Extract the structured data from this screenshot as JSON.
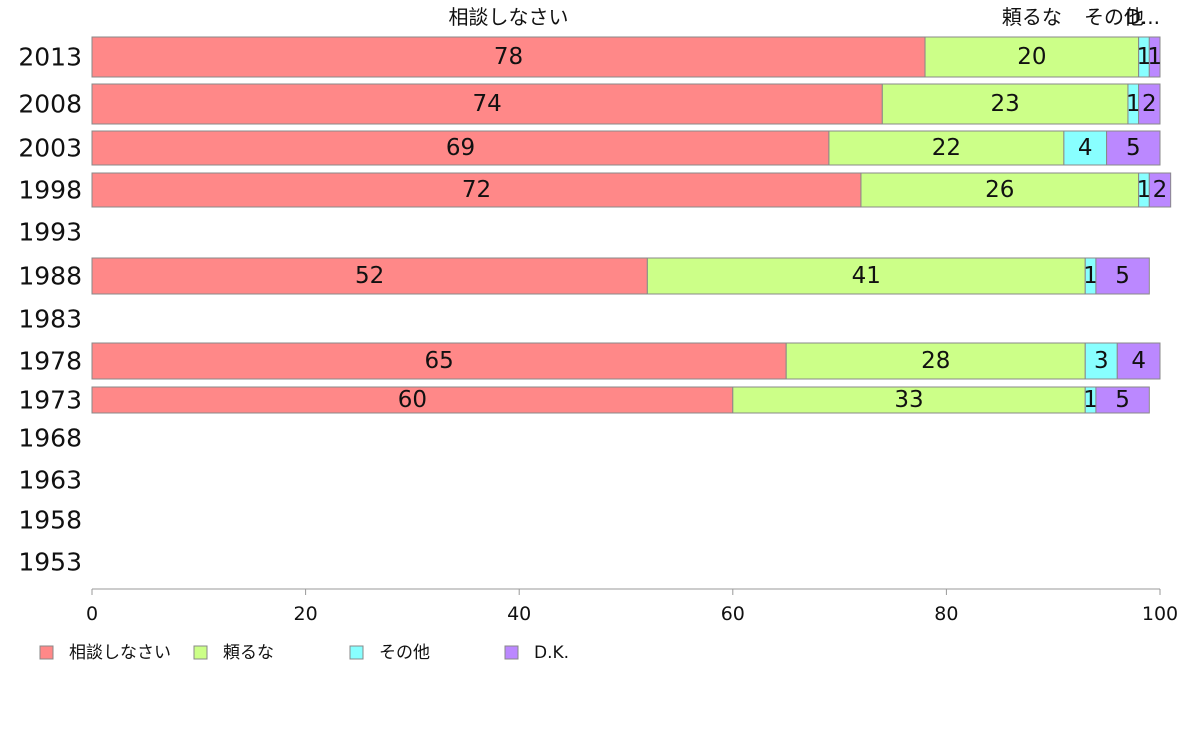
{
  "chart_data": {
    "type": "bar",
    "orientation": "horizontal",
    "stacked": true,
    "categories": [
      "2013",
      "2008",
      "2003",
      "1998",
      "1993",
      "1988",
      "1983",
      "1978",
      "1973",
      "1968",
      "1963",
      "1958",
      "1953"
    ],
    "series": [
      {
        "name": "相談しなさい",
        "color": "#ff8888",
        "values": [
          78,
          74,
          69,
          72,
          null,
          52,
          null,
          65,
          60,
          null,
          null,
          null,
          null
        ]
      },
      {
        "name": "頼るな",
        "color": "#ccff88",
        "values": [
          20,
          23,
          22,
          26,
          null,
          41,
          null,
          28,
          33,
          null,
          null,
          null,
          null
        ]
      },
      {
        "name": "その他",
        "color": "#88ffff",
        "values": [
          1,
          1,
          4,
          1,
          null,
          1,
          null,
          3,
          1,
          null,
          null,
          null,
          null
        ]
      },
      {
        "name": "D.K.",
        "color": "#bb88ff",
        "values": [
          1,
          2,
          5,
          2,
          null,
          5,
          null,
          4,
          5,
          null,
          null,
          null,
          null
        ]
      }
    ],
    "top_labels": [
      "相談しなさい",
      "頼るな",
      "その他",
      "D..."
    ],
    "xlim": [
      0,
      100
    ],
    "xticks": [
      0,
      20,
      40,
      60,
      80,
      100
    ],
    "grid": false,
    "legend_position": "bottom-left"
  }
}
